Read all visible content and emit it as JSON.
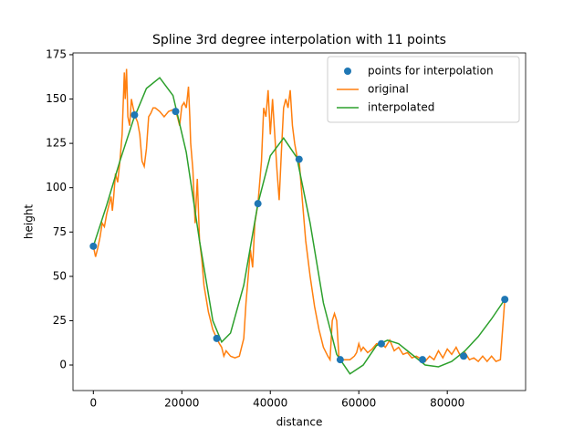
{
  "chart_data": {
    "type": "line",
    "title": "Spline 3rd degree interpolation with 11 points",
    "xlabel": "distance",
    "ylabel": "height",
    "xlim": [
      -4600,
      97700
    ],
    "ylim": [
      -14.4,
      176
    ],
    "xticks": [
      0,
      20000,
      40000,
      60000,
      80000
    ],
    "yticks": [
      0,
      25,
      50,
      75,
      100,
      125,
      150,
      175
    ],
    "legend": "upper right",
    "series": [
      {
        "name": "points for interpolation",
        "color": "#1f77b4",
        "mode": "markers",
        "x": [
          0,
          9300,
          18600,
          27900,
          37200,
          46500,
          55800,
          65100,
          74400,
          83700,
          93000
        ],
        "values": [
          67,
          141,
          143,
          15,
          91,
          116,
          3,
          12,
          3,
          5,
          37
        ]
      },
      {
        "name": "original",
        "color": "#ff7f0e",
        "mode": "line",
        "x": [
          0,
          500,
          1000,
          1500,
          2000,
          2500,
          3000,
          3500,
          4000,
          4300,
          4600,
          5000,
          5500,
          6000,
          6500,
          7000,
          7200,
          7500,
          7800,
          8200,
          8600,
          9000,
          9500,
          10000,
          10500,
          11000,
          11500,
          12000,
          12500,
          13000,
          13500,
          14000,
          15000,
          16000,
          17000,
          18000,
          18600,
          19000,
          19500,
          20000,
          20500,
          21000,
          21500,
          21800,
          22000,
          22500,
          23000,
          23500,
          24000,
          24500,
          25000,
          26000,
          27000,
          27900,
          28500,
          29000,
          29500,
          30000,
          31000,
          32000,
          33000,
          33500,
          34000,
          34500,
          35000,
          35500,
          36000,
          36500,
          37200,
          37500,
          38000,
          38500,
          39000,
          39500,
          40000,
          40500,
          41000,
          41500,
          42000,
          42500,
          43000,
          43500,
          44000,
          44500,
          45000,
          45500,
          46000,
          46500,
          47000,
          48000,
          49000,
          50000,
          51000,
          52000,
          53000,
          53500,
          54000,
          54500,
          55000,
          55500,
          55800,
          56500,
          57000,
          58000,
          59000,
          59500,
          60000,
          60500,
          61000,
          62000,
          63000,
          64000,
          65100,
          66000,
          67000,
          68000,
          69000,
          70000,
          71000,
          72000,
          73000,
          74400,
          75000,
          76000,
          77000,
          78000,
          79000,
          80000,
          81000,
          82000,
          83000,
          84000,
          85000,
          86000,
          87000,
          88000,
          89000,
          90000,
          91000,
          92000,
          93000
        ],
        "values": [
          67,
          61,
          66,
          72,
          80,
          78,
          85,
          90,
          95,
          87,
          95,
          108,
          103,
          115,
          130,
          165,
          150,
          167,
          140,
          135,
          150,
          145,
          140,
          137,
          130,
          115,
          112,
          122,
          140,
          142,
          145,
          145,
          143,
          140,
          143,
          144,
          143,
          140,
          135,
          146,
          148,
          145,
          157,
          140,
          125,
          110,
          80,
          105,
          70,
          60,
          45,
          30,
          20,
          15,
          12,
          10,
          5,
          8,
          5,
          4,
          5,
          10,
          15,
          35,
          50,
          65,
          55,
          80,
          91,
          100,
          115,
          145,
          140,
          155,
          130,
          150,
          130,
          110,
          93,
          120,
          145,
          150,
          145,
          155,
          135,
          125,
          118,
          116,
          100,
          70,
          50,
          33,
          20,
          10,
          5,
          3,
          25,
          29,
          25,
          5,
          3,
          3,
          3,
          3,
          5,
          7,
          12,
          8,
          10,
          7,
          9,
          12,
          12,
          10,
          14,
          8,
          10,
          6,
          7,
          4,
          5,
          3,
          2,
          5,
          3,
          8,
          4,
          9,
          6,
          10,
          5,
          7,
          3,
          4,
          2,
          5,
          2,
          5,
          2,
          3,
          37
        ]
      },
      {
        "name": "interpolated",
        "color": "#2ca02c",
        "mode": "line",
        "x": [
          0,
          3000,
          6000,
          9000,
          12000,
          15000,
          18000,
          21000,
          24000,
          27000,
          29000,
          31000,
          34000,
          37200,
          40000,
          43000,
          46000,
          49000,
          52000,
          55000,
          58000,
          61000,
          64000,
          66500,
          69000,
          72000,
          75000,
          78000,
          81000,
          84000,
          87000,
          90000,
          93000
        ],
        "values": [
          67,
          90,
          115,
          138,
          156,
          162,
          152,
          120,
          70,
          25,
          13,
          18,
          45,
          91,
          118,
          128,
          117,
          80,
          35,
          6,
          -5,
          0,
          11,
          14,
          12,
          6,
          0,
          -1,
          2,
          8,
          16,
          26,
          37
        ]
      }
    ]
  }
}
